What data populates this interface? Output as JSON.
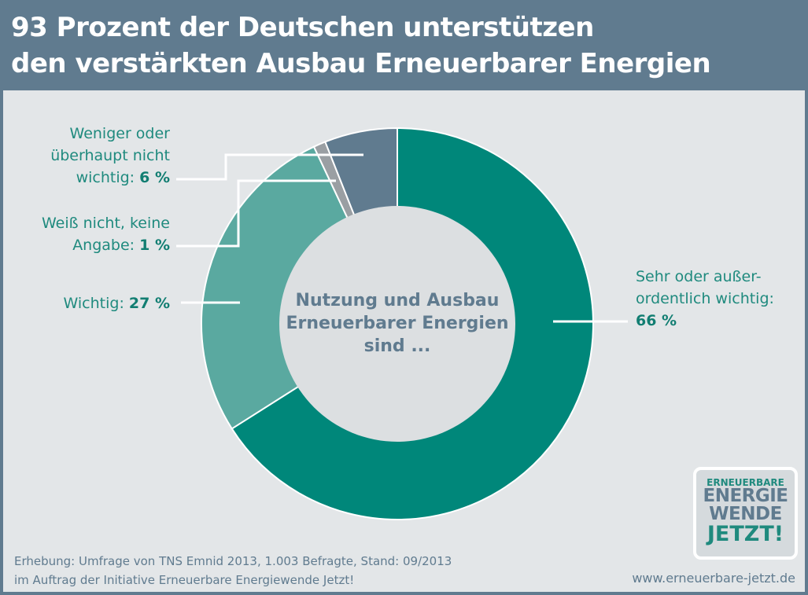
{
  "title": {
    "line1": "93 Prozent der Deutschen unterstützen",
    "line2": "den verstärkten Ausbau Erneuerbarer Energien"
  },
  "chart_data": {
    "type": "pie",
    "donut": true,
    "center_label": [
      "Nutzung und Ausbau",
      "Erneuerbarer Energien",
      "sind ..."
    ],
    "slices": [
      {
        "label": "Sehr oder außer-ordentlich wichtig",
        "value": 66,
        "color": "#00877a"
      },
      {
        "label": "Wichtig",
        "value": 27,
        "color": "#5aa9a0"
      },
      {
        "label": "Weiß nicht, keine Angabe",
        "value": 1,
        "color": "#9a9fa3"
      },
      {
        "label": "Weniger oder überhaupt nicht wichtig",
        "value": 6,
        "color": "#607b8f"
      }
    ]
  },
  "labels": {
    "sehr": {
      "l1": "Sehr oder außer-",
      "l2": "ordentlich wichtig:",
      "v": "66 %"
    },
    "wichtig": {
      "l1": "Wichtig: ",
      "v": "27 %"
    },
    "weiss": {
      "l1": "Weiß nicht, keine",
      "l2": "Angabe: ",
      "v": "1 %"
    },
    "weniger": {
      "l1": "Weniger oder",
      "l2": "überhaupt nicht",
      "l3": "wichtig: ",
      "v": "6 %"
    }
  },
  "footer": {
    "line1": "Erhebung: Umfrage von TNS Emnid 2013, 1.003 Befragte, Stand: 09/2013",
    "line2": "im Auftrag der Initiative Erneuerbare Energiewende Jetzt!",
    "url": "www.erneuerbare-jetzt.de"
  },
  "logo": {
    "l1": "ERNEUERBARE",
    "l2": "ENERGIE",
    "l3": "WENDE",
    "l4": "JETZT!"
  }
}
